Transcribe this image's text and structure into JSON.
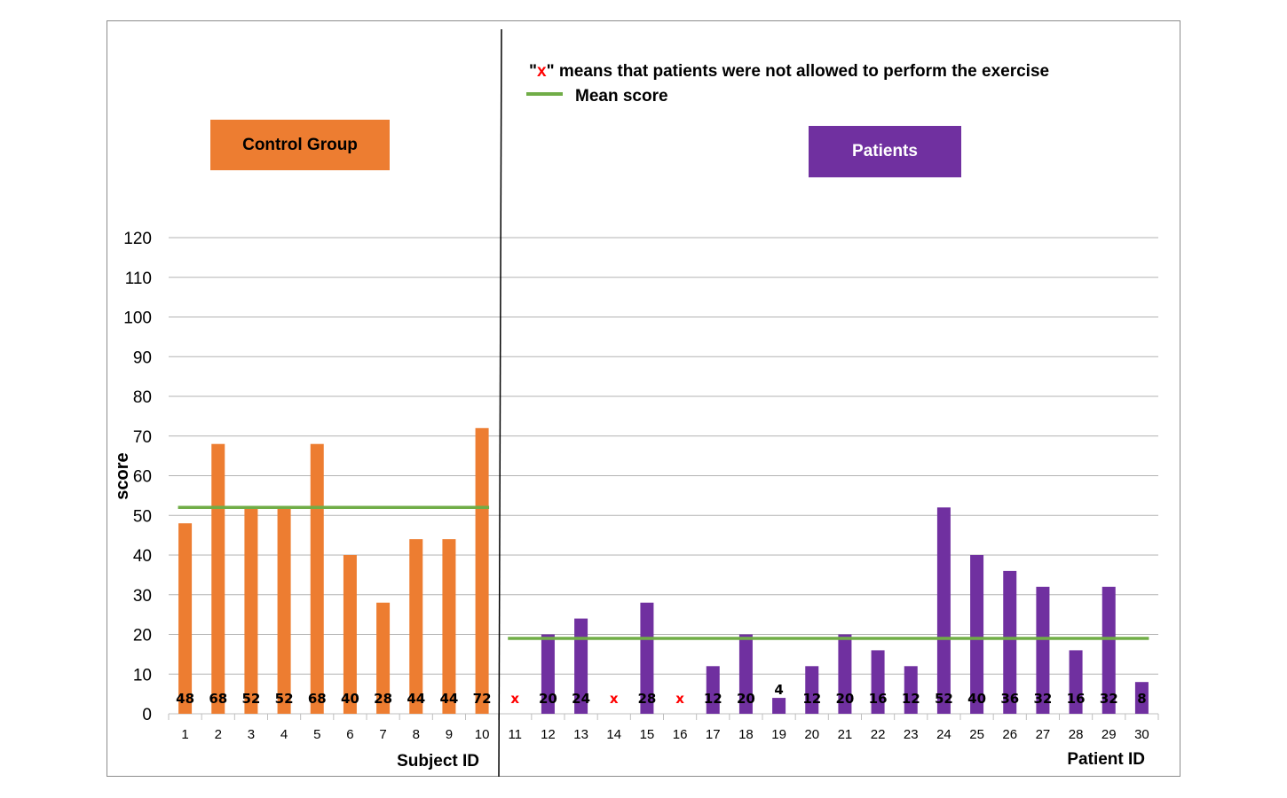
{
  "chart_data": {
    "type": "bar",
    "ylabel": "score",
    "ylim": [
      0,
      120
    ],
    "yticks": [
      0,
      10,
      20,
      30,
      40,
      50,
      60,
      70,
      80,
      90,
      100,
      110,
      120
    ],
    "grid": true,
    "groups": [
      {
        "name": "Control Group",
        "xlabel": "Subject ID",
        "color": "#ed7d31",
        "categories": [
          "1",
          "2",
          "3",
          "4",
          "5",
          "6",
          "7",
          "8",
          "9",
          "10"
        ],
        "values": [
          48,
          68,
          52,
          52,
          68,
          40,
          28,
          44,
          44,
          72
        ],
        "labels": [
          "48",
          "68",
          "52",
          "52",
          "68",
          "40",
          "28",
          "44",
          "44",
          "72"
        ],
        "mean": 52
      },
      {
        "name": "Patients",
        "xlabel": "Patient ID",
        "color": "#7030a0",
        "categories": [
          "11",
          "12",
          "13",
          "14",
          "15",
          "16",
          "17",
          "18",
          "19",
          "20",
          "21",
          "22",
          "23",
          "24",
          "25",
          "26",
          "27",
          "28",
          "29",
          "30"
        ],
        "values": [
          null,
          20,
          24,
          null,
          28,
          null,
          12,
          20,
          4,
          12,
          20,
          16,
          12,
          52,
          40,
          36,
          32,
          16,
          32,
          8
        ],
        "labels": [
          "x",
          "20",
          "24",
          "x",
          "28",
          "x",
          "12",
          "20",
          "4",
          "12",
          "20",
          "16",
          "12",
          "52",
          "40",
          "36",
          "32",
          "16",
          "32",
          "8"
        ],
        "mean": 19
      }
    ],
    "mean_line_color": "#70ad47",
    "legend": {
      "note_prefix": "\"",
      "note_x": "x",
      "note_suffix": "\" means that patients were not allowed to perform the exercise",
      "mean_label": "Mean score"
    }
  }
}
